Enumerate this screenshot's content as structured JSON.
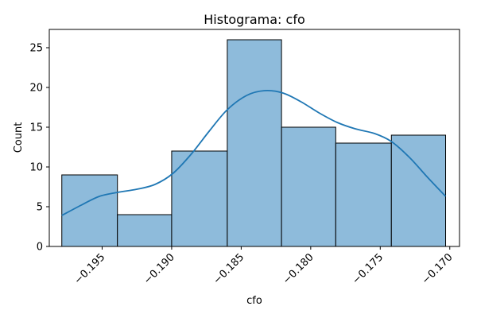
{
  "chart_data": {
    "type": "bar",
    "title": "Histograma: cfo",
    "xlabel": "cfo",
    "ylabel": "Count",
    "xlim": [
      -0.1988,
      -0.1693
    ],
    "ylim": [
      0,
      27.3
    ],
    "x_ticks": [
      -0.195,
      -0.19,
      -0.185,
      -0.18,
      -0.175,
      -0.17
    ],
    "x_tick_labels": [
      "−0.195",
      "−0.190",
      "−0.185",
      "−0.180",
      "−0.175",
      "−0.170"
    ],
    "y_ticks": [
      0,
      5,
      10,
      15,
      20,
      25
    ],
    "y_tick_labels": [
      "0",
      "5",
      "10",
      "15",
      "20",
      "25"
    ],
    "bins": [
      {
        "start": -0.1979,
        "end": -0.1939,
        "count": 9
      },
      {
        "start": -0.1939,
        "end": -0.19,
        "count": 4
      },
      {
        "start": -0.19,
        "end": -0.186,
        "count": 12
      },
      {
        "start": -0.186,
        "end": -0.1821,
        "count": 26
      },
      {
        "start": -0.1821,
        "end": -0.1782,
        "count": 15
      },
      {
        "start": -0.1782,
        "end": -0.1742,
        "count": 13
      },
      {
        "start": -0.1742,
        "end": -0.1703,
        "count": 14
      }
    ],
    "kde": {
      "x": [
        -0.1979,
        -0.1965,
        -0.1952,
        -0.1939,
        -0.1925,
        -0.1912,
        -0.1899,
        -0.1886,
        -0.1873,
        -0.186,
        -0.1846,
        -0.1833,
        -0.182,
        -0.1807,
        -0.1794,
        -0.1781,
        -0.1768,
        -0.1754,
        -0.1742,
        -0.1729,
        -0.1716,
        -0.1703
      ],
      "y": [
        3.9,
        5.2,
        6.3,
        6.8,
        7.2,
        7.8,
        9.2,
        11.6,
        14.5,
        17.2,
        19.0,
        19.6,
        19.3,
        18.2,
        16.8,
        15.6,
        14.8,
        14.2,
        13.2,
        11.2,
        8.7,
        6.3
      ]
    },
    "colors": {
      "bar_fill": "#8ebbdb",
      "bar_edge": "#000000",
      "kde_line": "#1f77b4"
    },
    "grid": false,
    "legend": "none"
  }
}
